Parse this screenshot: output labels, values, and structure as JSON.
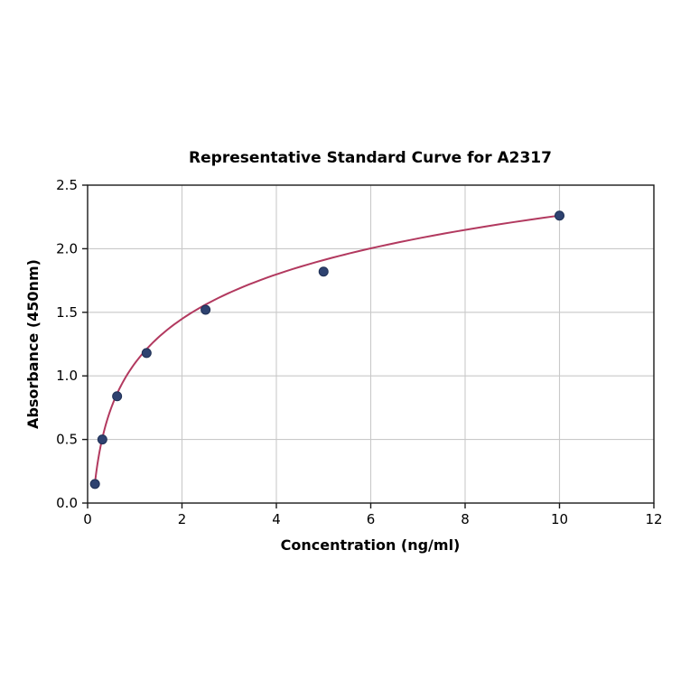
{
  "chart_data": {
    "type": "scatter",
    "title": "Representative Standard Curve for A2317",
    "xlabel": "Concentration (ng/ml)",
    "ylabel": "Absorbance (450nm)",
    "xlim": [
      0,
      12
    ],
    "ylim": [
      0.0,
      2.5
    ],
    "xtick_values": [
      0,
      2,
      4,
      6,
      8,
      10,
      12
    ],
    "xtick_labels": [
      "0",
      "2",
      "4",
      "6",
      "8",
      "10",
      "12"
    ],
    "ytick_values": [
      0.0,
      0.5,
      1.0,
      1.5,
      2.0,
      2.5
    ],
    "ytick_labels": [
      "0.0",
      "0.5",
      "1.0",
      "1.5",
      "2.0",
      "2.5"
    ],
    "grid": true,
    "legend": "none",
    "points": [
      {
        "x": 0.156,
        "y": 0.15
      },
      {
        "x": 0.3125,
        "y": 0.5
      },
      {
        "x": 0.625,
        "y": 0.84
      },
      {
        "x": 1.25,
        "y": 1.18
      },
      {
        "x": 2.5,
        "y": 1.52
      },
      {
        "x": 5,
        "y": 1.82
      },
      {
        "x": 10,
        "y": 2.26
      }
    ],
    "fit_curve": {
      "type": "logarithmic",
      "equation": "y = a + b*ln(x)",
      "a": 1.098,
      "b": 0.505,
      "x_start": 0.156,
      "x_end": 10
    },
    "colors": {
      "curve": "#b2395f",
      "point_fill": "#2e4270",
      "point_edge": "#1f3055",
      "grid": "#c9c9c9",
      "frame": "#1a1a1a",
      "background": "#ffffff"
    }
  }
}
